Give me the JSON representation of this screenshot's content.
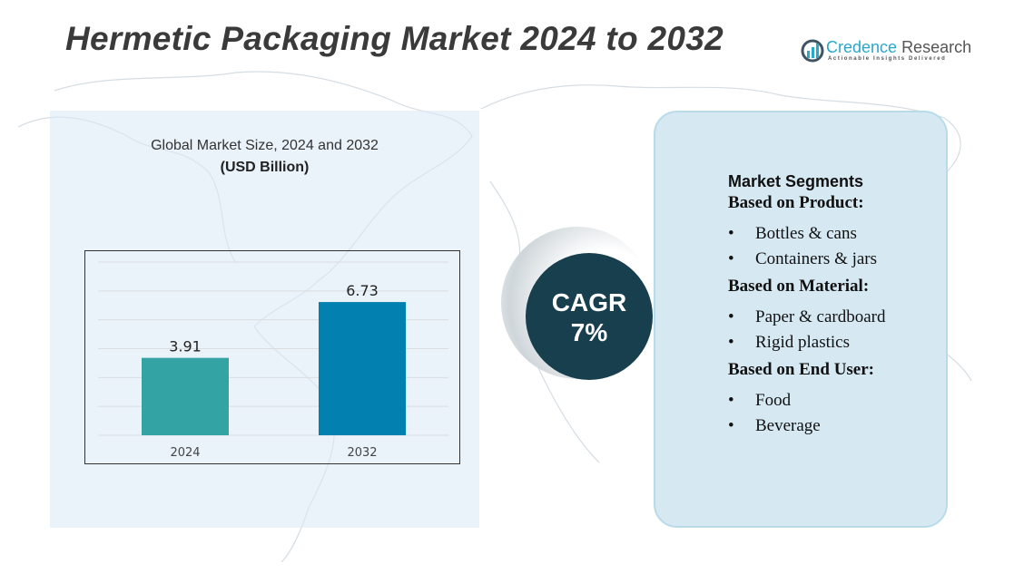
{
  "header": {
    "title": "Hermetic Packaging Market 2024 to 2032"
  },
  "logo": {
    "name_part1": "Credence",
    "name_part2": "Research",
    "tagline": "Actionable Insights Delivered"
  },
  "chart_data": {
    "type": "bar",
    "title": "Global Market Size,  2024 and 2032",
    "unit": "(USD Billion)",
    "categories": [
      "2024",
      "2032"
    ],
    "values": [
      3.91,
      6.73
    ],
    "value_labels": [
      "3.91",
      "6.73"
    ],
    "colors": [
      "#33a3a3",
      "#0280b0"
    ],
    "grid": true,
    "ylim": [
      0,
      8.75
    ]
  },
  "cagr": {
    "label": "CAGR",
    "value": "7%"
  },
  "segments": {
    "heading": "Market Segments",
    "groups": [
      {
        "title": "Based on Product:",
        "items": [
          "Bottles & cans",
          "Containers & jars"
        ]
      },
      {
        "title": "Based on Material:",
        "items": [
          "Paper & cardboard",
          "Rigid plastics"
        ]
      },
      {
        "title": "Based on End User:",
        "items": [
          "Food",
          "Beverage"
        ]
      }
    ]
  }
}
